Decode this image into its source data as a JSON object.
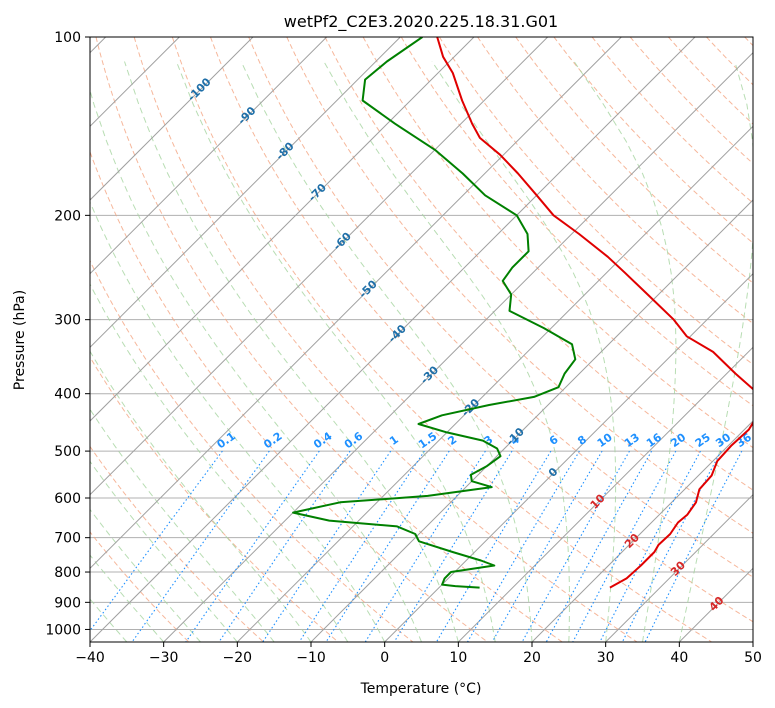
{
  "chart_data": {
    "type": "line",
    "subtype": "skew-t log-p diagram",
    "title": "wetPf2_C2E3.2020.225.18.31.G01",
    "xlabel": "Temperature (°C)",
    "ylabel": "Pressure (hPa)",
    "xlim": [
      -40,
      50
    ],
    "ylim": [
      1050,
      100
    ],
    "yscale": "log",
    "x_ticks": [
      -40,
      -30,
      -20,
      -10,
      0,
      10,
      20,
      30,
      40,
      50
    ],
    "x_tick_labels": [
      "−40",
      "−30",
      "−20",
      "−10",
      "0",
      "10",
      "20",
      "30",
      "40",
      "50"
    ],
    "y_ticks": [
      100,
      200,
      300,
      400,
      500,
      600,
      700,
      800,
      900,
      1000
    ],
    "y_tick_labels": [
      "100",
      "200",
      "300",
      "400",
      "500",
      "600",
      "700",
      "800",
      "900",
      "1000"
    ],
    "grid": true,
    "skew_isotherms_step": 10,
    "isotherm_label_color": "#1f6fa8",
    "isotherm_labels": [
      {
        "text": "-100",
        "p": 122
      },
      {
        "text": "-90",
        "p": 135
      },
      {
        "text": "-80",
        "p": 155
      },
      {
        "text": "-70",
        "p": 182
      },
      {
        "text": "-60",
        "p": 220
      },
      {
        "text": "-50",
        "p": 265
      },
      {
        "text": "-40",
        "p": 315
      },
      {
        "text": "-30",
        "p": 370
      },
      {
        "text": "-20",
        "p": 420
      },
      {
        "text": "-10",
        "p": 470
      },
      {
        "text": "0",
        "p": 540
      }
    ],
    "mixing_ratio_label_color": "#1e90ff",
    "mixing_ratio_labels": [
      "0.1",
      "0.2",
      "0.4",
      "0.6",
      "1",
      "1.5",
      "2",
      "3",
      "4",
      "6",
      "8",
      "10",
      "13",
      "16",
      "20",
      "25",
      "30",
      "36"
    ],
    "warm_isotherm_label_color": "#d62728",
    "warm_isotherm_labels": [
      {
        "text": "10",
        "p": 605
      },
      {
        "text": "20",
        "p": 705
      },
      {
        "text": "30",
        "p": 785
      },
      {
        "text": "40",
        "p": 900
      }
    ],
    "series": [
      {
        "kind": "temperature",
        "color": "#e00000",
        "points": [
          [
            850,
            23.2
          ],
          [
            820,
            24.2
          ],
          [
            780,
            24.4
          ],
          [
            740,
            24.4
          ],
          [
            720,
            24.0
          ],
          [
            690,
            24.1
          ],
          [
            660,
            23.6
          ],
          [
            640,
            23.8
          ],
          [
            610,
            23.3
          ],
          [
            580,
            22.0
          ],
          [
            550,
            21.8
          ],
          [
            520,
            20.6
          ],
          [
            490,
            20.4
          ],
          [
            460,
            20.6
          ],
          [
            430,
            19.7
          ],
          [
            400,
            17.0
          ],
          [
            370,
            11.2
          ],
          [
            340,
            5.2
          ],
          [
            320,
            -0.5
          ],
          [
            300,
            -4.5
          ],
          [
            270,
            -12.0
          ],
          [
            250,
            -17.5
          ],
          [
            235,
            -22.0
          ],
          [
            215,
            -29.0
          ],
          [
            200,
            -35.0
          ],
          [
            185,
            -40.0
          ],
          [
            170,
            -45.5
          ],
          [
            158,
            -50.5
          ],
          [
            148,
            -55.5
          ],
          [
            140,
            -58.5
          ],
          [
            128,
            -63.0
          ],
          [
            115,
            -68.0
          ],
          [
            108,
            -71.5
          ],
          [
            100,
            -75.0
          ]
        ]
      },
      {
        "kind": "dewpoint",
        "color": "#008000",
        "points": [
          [
            850,
            5.5
          ],
          [
            845,
            2.0
          ],
          [
            840,
            0.0
          ],
          [
            820,
            -0.5
          ],
          [
            800,
            -0.5
          ],
          [
            780,
            4.5
          ],
          [
            765,
            2.0
          ],
          [
            740,
            -3.0
          ],
          [
            710,
            -9.0
          ],
          [
            690,
            -10.5
          ],
          [
            670,
            -14.0
          ],
          [
            655,
            -24.0
          ],
          [
            635,
            -30.0
          ],
          [
            610,
            -25.0
          ],
          [
            595,
            -14.0
          ],
          [
            575,
            -6.5
          ],
          [
            562,
            -10.0
          ],
          [
            548,
            -11.0
          ],
          [
            530,
            -10.0
          ],
          [
            510,
            -9.5
          ],
          [
            495,
            -11.0
          ],
          [
            480,
            -14.0
          ],
          [
            465,
            -20.0
          ],
          [
            450,
            -25.0
          ],
          [
            435,
            -23.0
          ],
          [
            418,
            -18.0
          ],
          [
            405,
            -13.0
          ],
          [
            390,
            -11.0
          ],
          [
            370,
            -12.0
          ],
          [
            350,
            -12.5
          ],
          [
            330,
            -15.0
          ],
          [
            310,
            -21.0
          ],
          [
            290,
            -28.0
          ],
          [
            272,
            -30.0
          ],
          [
            258,
            -33.0
          ],
          [
            245,
            -33.5
          ],
          [
            230,
            -33.5
          ],
          [
            215,
            -36.0
          ],
          [
            200,
            -40.0
          ],
          [
            185,
            -47.0
          ],
          [
            170,
            -53.0
          ],
          [
            155,
            -60.0
          ],
          [
            140,
            -69.0
          ],
          [
            128,
            -76.5
          ],
          [
            118,
            -79.0
          ],
          [
            110,
            -78.5
          ],
          [
            100,
            -77.0
          ]
        ]
      }
    ]
  }
}
